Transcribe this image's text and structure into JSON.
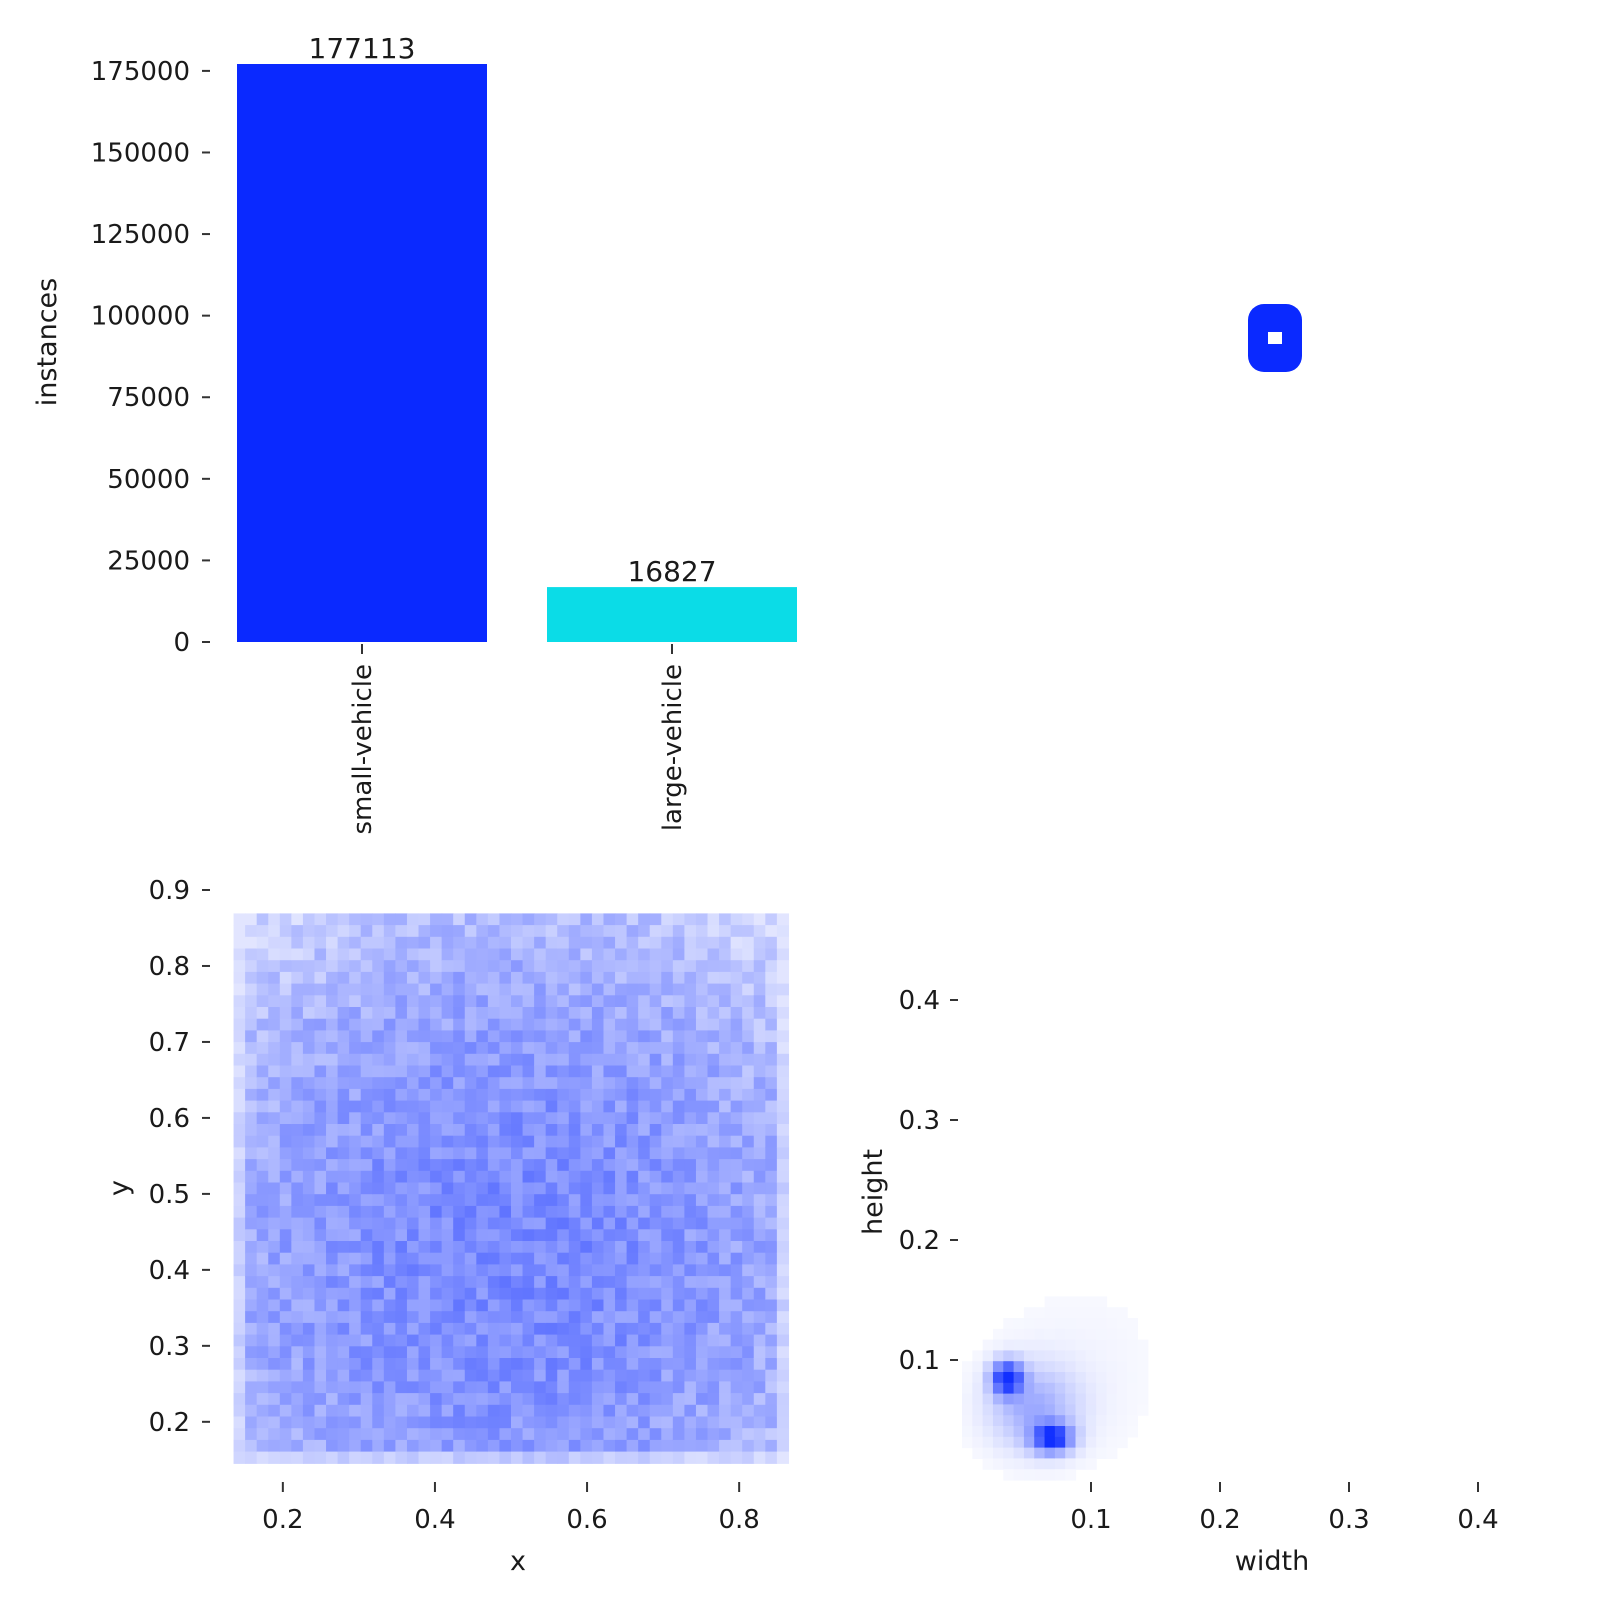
{
  "chart_data": [
    {
      "type": "bar",
      "categories": [
        "small-vehicle",
        "large-vehicle"
      ],
      "values": [
        177113,
        16827
      ],
      "data_labels": [
        "177113",
        "16827"
      ],
      "colors": [
        "#0a29ff",
        "#0bdce7"
      ],
      "ylabel": "instances",
      "xlabel": "",
      "ylim": [
        0,
        177113
      ],
      "yticks": [
        0,
        25000,
        50000,
        75000,
        100000,
        125000,
        150000,
        175000
      ],
      "ytick_labels": [
        "0",
        "25000",
        "50000",
        "75000",
        "100000",
        "125000",
        "150000",
        "175000"
      ],
      "grid": false
    },
    {
      "type": "heatmap",
      "xlabel": "x",
      "ylabel": "y",
      "xlim": [
        0.12,
        0.88
      ],
      "ylim": [
        0.13,
        0.9
      ],
      "xticks": [
        0.2,
        0.4,
        0.6,
        0.8
      ],
      "xtick_labels": [
        "0.2",
        "0.4",
        "0.6",
        "0.8"
      ],
      "yticks": [
        0.2,
        0.3,
        0.4,
        0.5,
        0.6,
        0.7,
        0.8,
        0.9
      ],
      "ytick_labels": [
        "0.2",
        "0.3",
        "0.4",
        "0.5",
        "0.6",
        "0.7",
        "0.8",
        "0.9"
      ],
      "color": "#0a29ff",
      "grid": false
    },
    {
      "type": "heatmap",
      "xlabel": "width",
      "ylabel": "height",
      "xlim": [
        0,
        0.4
      ],
      "ylim": [
        0,
        0.45
      ],
      "xticks": [
        0.1,
        0.2,
        0.3,
        0.4
      ],
      "xtick_labels": [
        "0.1",
        "0.2",
        "0.3",
        "0.4"
      ],
      "yticks": [
        0.1,
        0.2,
        0.3,
        0.4
      ],
      "ytick_labels": [
        "0.1",
        "0.2",
        "0.3",
        "0.4"
      ],
      "color": "#0a29ff",
      "grid": false
    },
    {
      "type": "other",
      "mark_color": "#0a29ff"
    }
  ]
}
